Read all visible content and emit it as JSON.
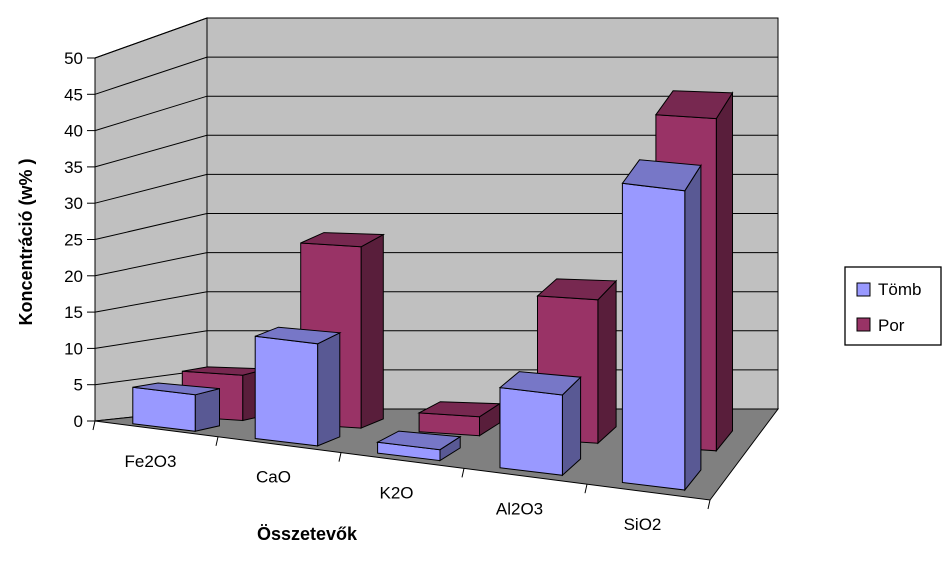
{
  "chart_data": {
    "type": "bar",
    "three_d": true,
    "categories": [
      "Fe2O3",
      "CaO",
      "K2O",
      "Al2O3",
      "SiO2"
    ],
    "series": [
      {
        "name": "Tömb",
        "values": [
          5,
          14,
          1.5,
          11,
          41
        ],
        "color": "#9999ff"
      },
      {
        "name": "Por",
        "values": [
          6,
          24,
          2.5,
          19,
          44
        ],
        "color": "#993366"
      }
    ],
    "xlabel": "Összetevők",
    "ylabel": "Koncentráció (w% )",
    "ylim": [
      0,
      50
    ],
    "yticks": [
      0,
      5,
      10,
      15,
      20,
      25,
      30,
      35,
      40,
      45,
      50
    ],
    "grid": true,
    "legend": "right",
    "colors": {
      "wall": "#c0c0c0",
      "floor": "#808080",
      "grid": "#000000"
    }
  }
}
